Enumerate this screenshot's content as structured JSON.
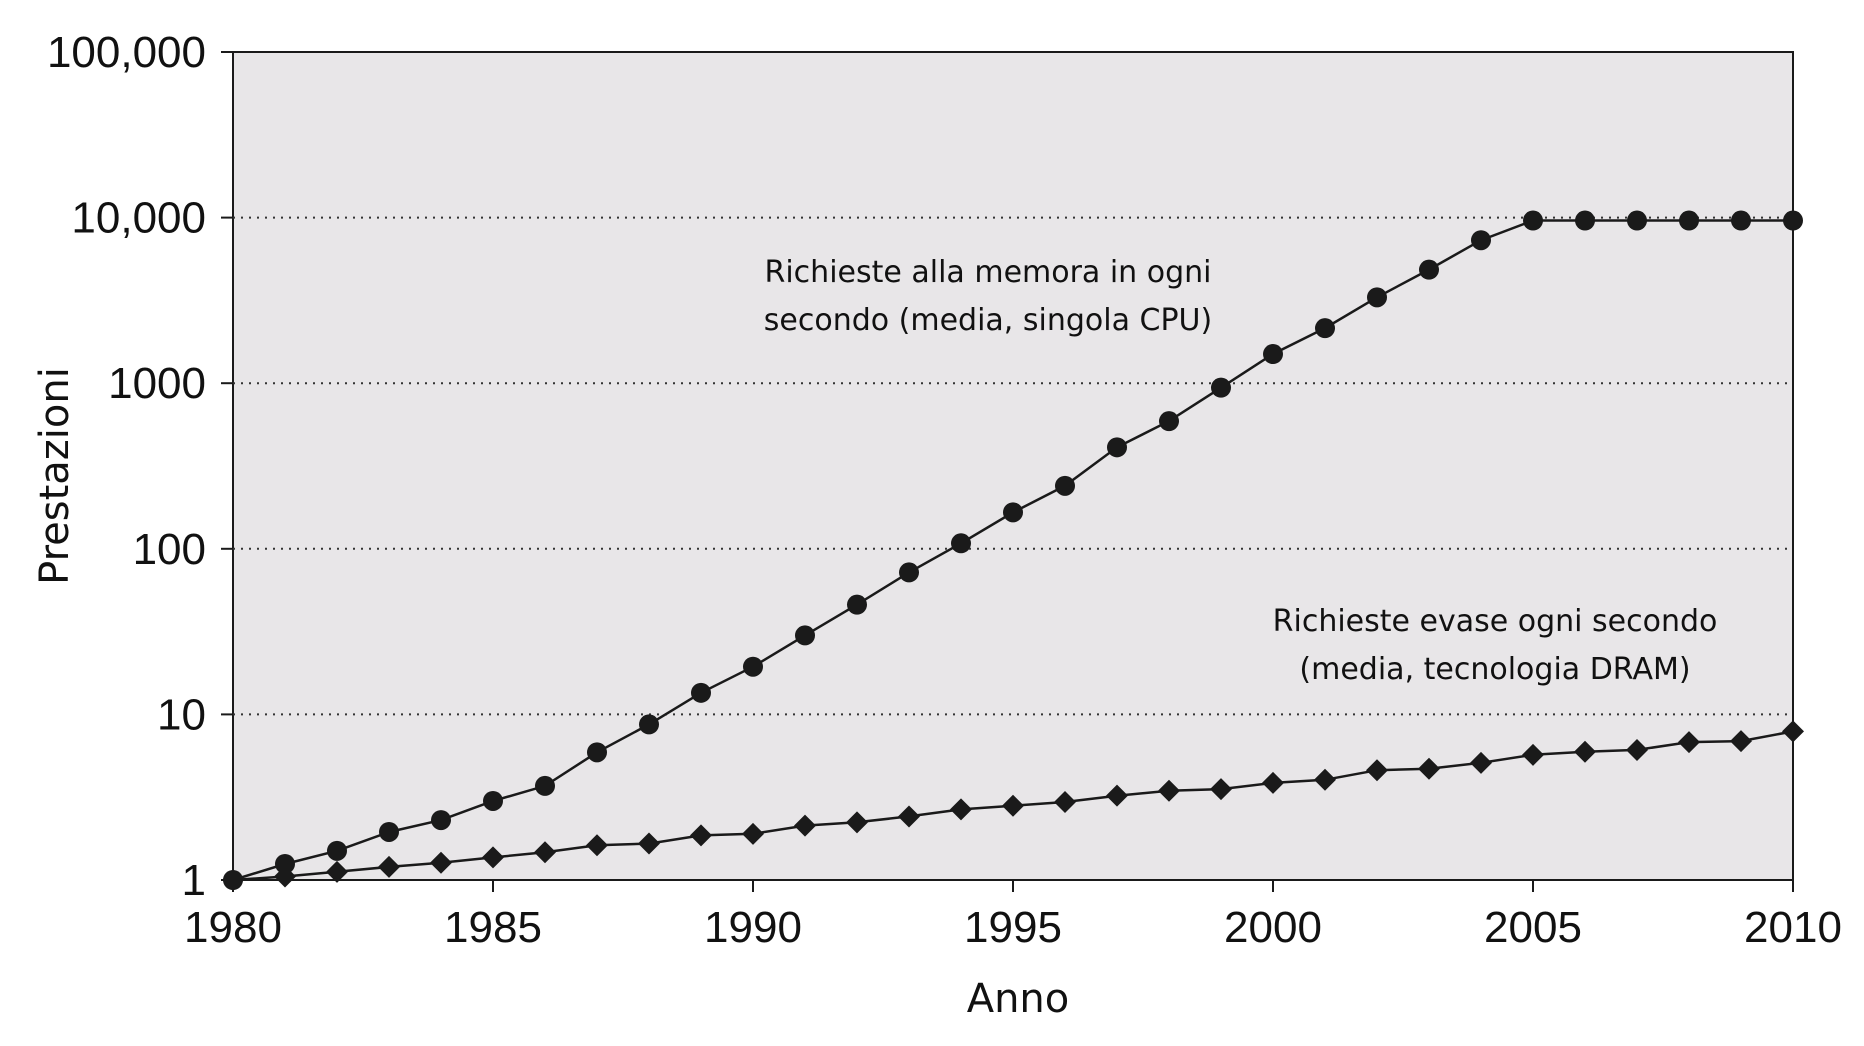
{
  "chart_data": {
    "type": "line",
    "title": "",
    "xlabel": "Anno",
    "ylabel": "Prestazioni",
    "xlim": [
      1980,
      2010
    ],
    "ylim": [
      1,
      100000
    ],
    "yscale": "log",
    "grid": "horizontal dotted at 10, 100, 1000, 10,000",
    "x_ticks": [
      1980,
      1985,
      1990,
      1995,
      2000,
      2005,
      2010
    ],
    "x_tick_labels": [
      "1980",
      "1985",
      "1990",
      "1995",
      "2000",
      "2005",
      "2010"
    ],
    "y_ticks": [
      1,
      10,
      100,
      1000,
      10000,
      100000
    ],
    "y_tick_labels": [
      "1",
      "10",
      "100",
      "1000",
      "10,000",
      "100,000"
    ],
    "colors": {
      "plot_background": "#e8e6e8",
      "series": "#1a1a1a",
      "grid": "#333333"
    },
    "annotations": [
      {
        "series_index": 0,
        "lines": [
          "Richieste alla memora in ogni",
          "secondo (media, singola CPU)"
        ]
      },
      {
        "series_index": 1,
        "lines": [
          "Richieste evase ogni secondo",
          "(media, tecnologia DRAM)"
        ]
      }
    ],
    "x": [
      1980,
      1981,
      1982,
      1983,
      1984,
      1985,
      1986,
      1987,
      1988,
      1989,
      1990,
      1991,
      1992,
      1993,
      1994,
      1995,
      1996,
      1997,
      1998,
      1999,
      2000,
      2001,
      2002,
      2003,
      2004,
      2005,
      2006,
      2007,
      2008,
      2009,
      2010
    ],
    "series": [
      {
        "marker": "circle",
        "values": [
          1,
          1.25,
          1.5,
          1.95,
          2.3,
          3.0,
          3.7,
          5.9,
          8.7,
          13.5,
          19.4,
          30,
          46,
          72,
          108,
          166,
          240,
          410,
          590,
          940,
          1500,
          2150,
          3300,
          4850,
          7300,
          9600,
          9600,
          9600,
          9600,
          9600,
          9600
        ]
      },
      {
        "marker": "diamond",
        "values": [
          1,
          1.05,
          1.12,
          1.2,
          1.27,
          1.37,
          1.47,
          1.62,
          1.66,
          1.86,
          1.9,
          2.13,
          2.23,
          2.42,
          2.67,
          2.81,
          2.96,
          3.23,
          3.46,
          3.54,
          3.86,
          4.03,
          4.6,
          4.7,
          5.1,
          5.7,
          5.95,
          6.1,
          6.8,
          6.9,
          7.9
        ]
      }
    ]
  }
}
